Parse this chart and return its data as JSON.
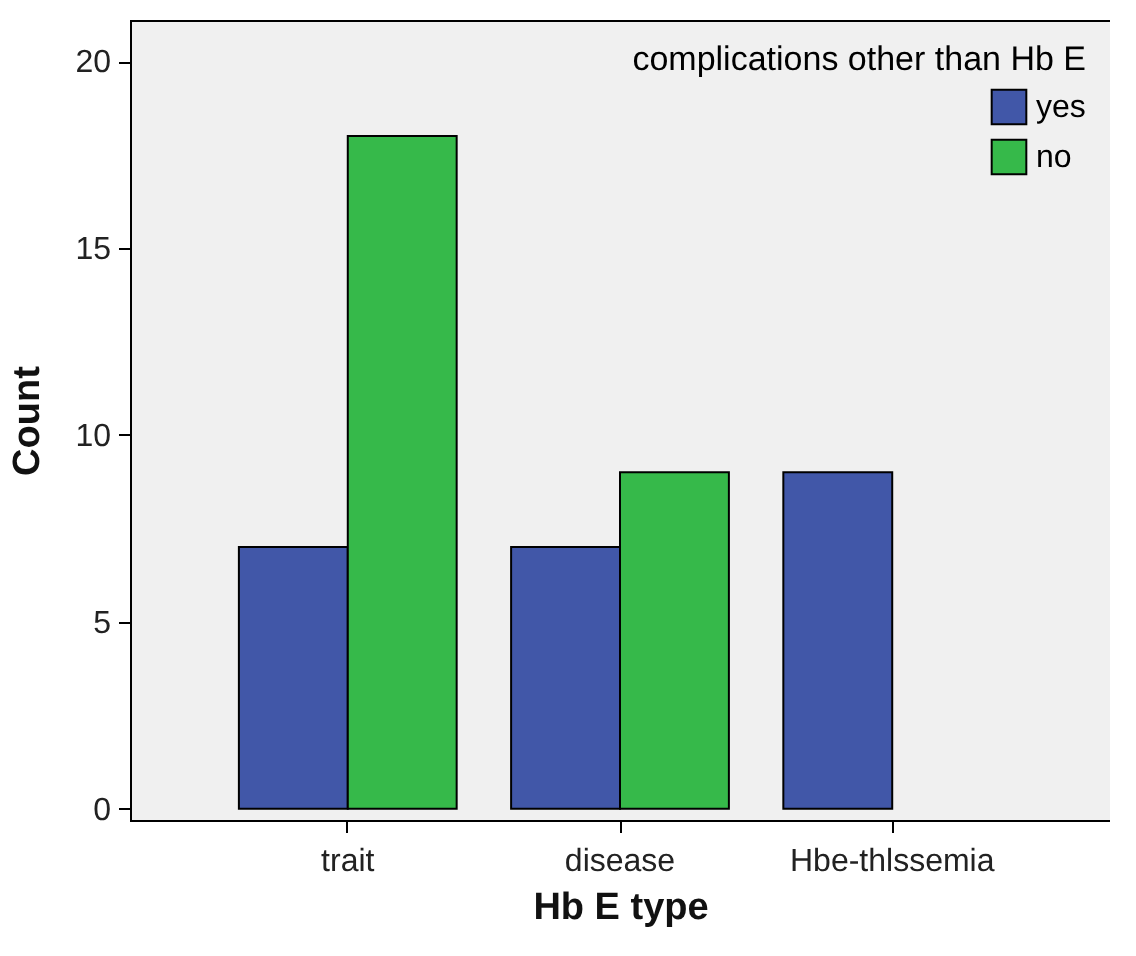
{
  "chart_data": {
    "type": "bar",
    "xlabel": "Hb E type",
    "ylabel": "Count",
    "legend_title": "complications other than Hb E",
    "legend": "top right",
    "categories": [
      "trait",
      "disease",
      "Hbe-thlssemia"
    ],
    "series": [
      {
        "name": "yes",
        "color": "#4157a8",
        "values": [
          7,
          7,
          9
        ]
      },
      {
        "name": "no",
        "color": "#36b94a",
        "values": [
          18,
          9,
          null
        ]
      }
    ],
    "ylim": [
      -0.3,
      21.1
    ],
    "yticks": [
      0,
      5,
      10,
      15,
      20
    ],
    "grid": false
  }
}
